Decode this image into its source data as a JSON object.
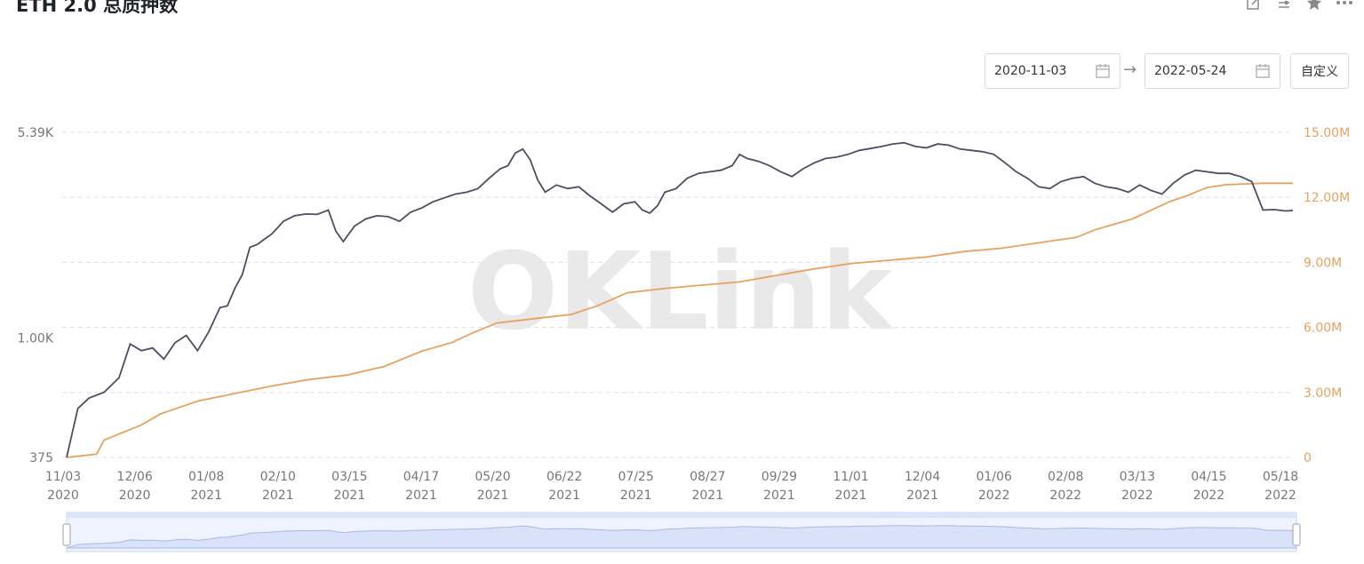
{
  "header": {
    "title": "ETH 2.0 总质押数",
    "icons": [
      "edit-icon",
      "settings-icon",
      "star-icon",
      "more-icon"
    ]
  },
  "date_range": {
    "start": "2020-11-03",
    "end": "2022-05-24",
    "custom_label": "自定义"
  },
  "watermark": "OKLink",
  "colors": {
    "addresses_line": "#4a4f63",
    "staked_line": "#e8a25c",
    "grid": "#e0e0e0",
    "right_axis_text": "#e8a25c"
  },
  "chart_data": {
    "type": "line",
    "x_tick_labels": [
      [
        "11/03",
        "2020"
      ],
      [
        "12/06",
        "2020"
      ],
      [
        "01/08",
        "2021"
      ],
      [
        "02/10",
        "2021"
      ],
      [
        "03/15",
        "2021"
      ],
      [
        "04/17",
        "2021"
      ],
      [
        "05/20",
        "2021"
      ],
      [
        "06/22",
        "2021"
      ],
      [
        "07/25",
        "2021"
      ],
      [
        "08/27",
        "2021"
      ],
      [
        "09/29",
        "2021"
      ],
      [
        "11/01",
        "2021"
      ],
      [
        "12/04",
        "2021"
      ],
      [
        "01/06",
        "2022"
      ],
      [
        "02/08",
        "2022"
      ],
      [
        "03/13",
        "2022"
      ],
      [
        "04/15",
        "2022"
      ],
      [
        "05/18",
        "2022"
      ]
    ],
    "y_left": {
      "ticks": [
        "5.39K",
        "1.00K",
        "375"
      ],
      "scale": "log",
      "range": [
        375,
        5390
      ]
    },
    "y_right": {
      "ticks": [
        "15.00M",
        "12.00M",
        "9.00M",
        "6.00M",
        "3.00M",
        "0"
      ],
      "range": [
        0,
        15000000
      ]
    },
    "grid": true,
    "series": [
      {
        "axis": "left",
        "points": [
          [
            0,
            375
          ],
          [
            3,
            560
          ],
          [
            6,
            610
          ],
          [
            10,
            640
          ],
          [
            14,
            720
          ],
          [
            17,
            950
          ],
          [
            20,
            900
          ],
          [
            23,
            920
          ],
          [
            26,
            840
          ],
          [
            29,
            960
          ],
          [
            32,
            1020
          ],
          [
            35,
            900
          ],
          [
            38,
            1050
          ],
          [
            41,
            1280
          ],
          [
            43,
            1300
          ],
          [
            45,
            1500
          ],
          [
            47,
            1680
          ],
          [
            49,
            2100
          ],
          [
            51,
            2150
          ],
          [
            53,
            2250
          ],
          [
            55,
            2350
          ],
          [
            58,
            2600
          ],
          [
            61,
            2720
          ],
          [
            64,
            2760
          ],
          [
            67,
            2750
          ],
          [
            70,
            2850
          ],
          [
            72,
            2400
          ],
          [
            74,
            2200
          ],
          [
            77,
            2500
          ],
          [
            80,
            2650
          ],
          [
            83,
            2720
          ],
          [
            86,
            2700
          ],
          [
            89,
            2600
          ],
          [
            92,
            2800
          ],
          [
            95,
            2900
          ],
          [
            98,
            3050
          ],
          [
            101,
            3150
          ],
          [
            104,
            3250
          ],
          [
            107,
            3300
          ],
          [
            110,
            3400
          ],
          [
            113,
            3700
          ],
          [
            116,
            4000
          ],
          [
            118,
            4100
          ],
          [
            120,
            4550
          ],
          [
            122,
            4700
          ],
          [
            124,
            4300
          ],
          [
            126,
            3650
          ],
          [
            128,
            3300
          ],
          [
            131,
            3500
          ],
          [
            134,
            3400
          ],
          [
            137,
            3450
          ],
          [
            140,
            3200
          ],
          [
            143,
            3000
          ],
          [
            146,
            2800
          ],
          [
            149,
            3000
          ],
          [
            152,
            3050
          ],
          [
            154,
            2850
          ],
          [
            156,
            2780
          ],
          [
            158,
            2950
          ],
          [
            160,
            3300
          ],
          [
            163,
            3400
          ],
          [
            166,
            3700
          ],
          [
            169,
            3850
          ],
          [
            172,
            3900
          ],
          [
            175,
            3950
          ],
          [
            178,
            4100
          ],
          [
            180,
            4500
          ],
          [
            182,
            4350
          ],
          [
            185,
            4250
          ],
          [
            188,
            4100
          ],
          [
            191,
            3900
          ],
          [
            194,
            3750
          ],
          [
            197,
            4000
          ],
          [
            200,
            4200
          ],
          [
            203,
            4350
          ],
          [
            206,
            4400
          ],
          [
            209,
            4500
          ],
          [
            212,
            4650
          ],
          [
            215,
            4720
          ],
          [
            218,
            4800
          ],
          [
            221,
            4900
          ],
          [
            224,
            4950
          ],
          [
            227,
            4800
          ],
          [
            230,
            4750
          ],
          [
            233,
            4900
          ],
          [
            236,
            4850
          ],
          [
            239,
            4700
          ],
          [
            242,
            4650
          ],
          [
            245,
            4600
          ],
          [
            248,
            4500
          ],
          [
            251,
            4200
          ],
          [
            254,
            3900
          ],
          [
            257,
            3700
          ],
          [
            260,
            3450
          ],
          [
            263,
            3400
          ],
          [
            266,
            3600
          ],
          [
            269,
            3700
          ],
          [
            272,
            3750
          ],
          [
            275,
            3550
          ],
          [
            278,
            3450
          ],
          [
            281,
            3400
          ],
          [
            284,
            3300
          ],
          [
            287,
            3500
          ],
          [
            290,
            3350
          ],
          [
            293,
            3250
          ],
          [
            296,
            3550
          ],
          [
            299,
            3800
          ],
          [
            302,
            3950
          ],
          [
            305,
            3900
          ],
          [
            308,
            3850
          ],
          [
            311,
            3850
          ],
          [
            314,
            3750
          ],
          [
            317,
            3600
          ],
          [
            320,
            2850
          ],
          [
            323,
            2860
          ],
          [
            326,
            2830
          ],
          [
            328,
            2840
          ]
        ]
      },
      {
        "axis": "right",
        "points": [
          [
            0,
            0
          ],
          [
            8,
            150000
          ],
          [
            10,
            800000
          ],
          [
            20,
            1500000
          ],
          [
            25,
            2000000
          ],
          [
            35,
            2600000
          ],
          [
            45,
            2950000
          ],
          [
            55,
            3300000
          ],
          [
            65,
            3600000
          ],
          [
            75,
            3800000
          ],
          [
            85,
            4200000
          ],
          [
            95,
            4900000
          ],
          [
            103,
            5300000
          ],
          [
            108,
            5700000
          ],
          [
            115,
            6200000
          ],
          [
            125,
            6400000
          ],
          [
            135,
            6600000
          ],
          [
            142,
            7000000
          ],
          [
            150,
            7600000
          ],
          [
            160,
            7800000
          ],
          [
            170,
            7950000
          ],
          [
            180,
            8100000
          ],
          [
            190,
            8400000
          ],
          [
            200,
            8700000
          ],
          [
            210,
            8950000
          ],
          [
            220,
            9100000
          ],
          [
            230,
            9250000
          ],
          [
            240,
            9500000
          ],
          [
            250,
            9650000
          ],
          [
            260,
            9900000
          ],
          [
            270,
            10150000
          ],
          [
            275,
            10500000
          ],
          [
            285,
            11000000
          ],
          [
            290,
            11400000
          ],
          [
            295,
            11800000
          ],
          [
            300,
            12100000
          ],
          [
            305,
            12450000
          ],
          [
            310,
            12580000
          ],
          [
            315,
            12620000
          ],
          [
            320,
            12650000
          ],
          [
            328,
            12650000
          ]
        ]
      }
    ]
  }
}
